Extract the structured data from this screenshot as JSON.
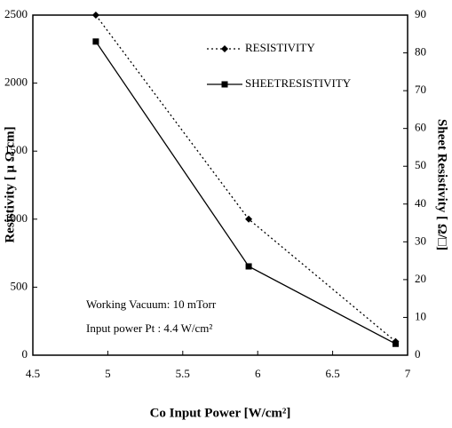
{
  "chart_data": {
    "type": "line",
    "xlabel": "Co Input Power [W/cm²]",
    "ylabel": "Resistivity [ μ Ω cm]",
    "y2label": "Sheet Resistivity [ Ω/□]",
    "xlim": [
      4.5,
      7
    ],
    "xticks": [
      4.5,
      5,
      5.5,
      6,
      6.5,
      7
    ],
    "ylim": [
      0,
      2500
    ],
    "yticks": [
      0,
      500,
      1000,
      1500,
      2000,
      2500
    ],
    "y2lim": [
      0,
      90
    ],
    "y2ticks": [
      0,
      10,
      20,
      30,
      40,
      50,
      60,
      70,
      80,
      90
    ],
    "x": [
      4.92,
      5.94,
      6.92
    ],
    "series": [
      {
        "name": "RESISTIVITY",
        "color": "#000000",
        "line_style": "dotted",
        "marker": "diamond",
        "values": [
          2500,
          1000,
          100
        ]
      },
      {
        "name": "SHEETRESISTIVITY",
        "color": "#000000",
        "line_style": "solid",
        "marker": "square",
        "axis": "y2",
        "values": [
          83,
          23.5,
          3
        ]
      }
    ],
    "annotations": [
      "Working Vacuum: 10 mTorr",
      "Input power Pt : 4.4 W/cm²"
    ]
  }
}
